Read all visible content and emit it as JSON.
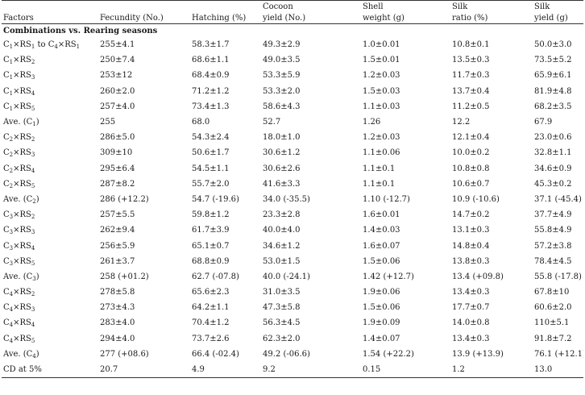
{
  "table": {
    "headers_top": [
      "",
      "",
      "",
      "Cocoon",
      "Shell",
      "Silk",
      "Silk"
    ],
    "headers_bottom": [
      "Factors",
      "Fecundity (No.)",
      "Hatching (%)",
      "yield (No.)",
      "weight (g)",
      "ratio (%)",
      "yield (g)"
    ],
    "section_title": "Combinations vs. Rearing seasons",
    "rows": [
      {
        "label": [
          [
            "C",
            "1"
          ],
          [
            "×RS",
            "1"
          ],
          [
            " to C",
            "4"
          ],
          [
            "×RS",
            "1"
          ]
        ],
        "values": [
          "255±4.1",
          "58.3±1.7",
          "49.3±2.9",
          "1.0±0.01",
          "10.8±0.1",
          "50.0±3.0"
        ]
      },
      {
        "label": [
          [
            "C",
            "1"
          ],
          [
            "×RS",
            "2"
          ]
        ],
        "values": [
          "250±7.4",
          "68.6±1.1",
          "49.0±3.5",
          "1.5±0.01",
          "13.5±0.3",
          "73.5±5.2"
        ]
      },
      {
        "label": [
          [
            "C",
            "1"
          ],
          [
            "×RS",
            "3"
          ]
        ],
        "values": [
          "253±12",
          "68.4±0.9",
          "53.3±5.9",
          "1.2±0.03",
          "11.7±0.3",
          "65.9±6.1"
        ]
      },
      {
        "label": [
          [
            "C",
            "1"
          ],
          [
            "×RS",
            "4"
          ]
        ],
        "values": [
          "260±2.0",
          "71.2±1.2",
          "53.3±2.0",
          "1.5±0.03",
          "13.7±0.4",
          "81.9±4.8"
        ]
      },
      {
        "label": [
          [
            "C",
            "1"
          ],
          [
            "×RS",
            "5"
          ]
        ],
        "values": [
          "257±4.0",
          "73.4±1.3",
          "58.6±4.3",
          "1.1±0.03",
          "11.2±0.5",
          "68.2±3.5"
        ]
      },
      {
        "label": [
          [
            "Ave. (C",
            "1"
          ],
          [
            ")",
            ""
          ]
        ],
        "values": [
          "255",
          "68.0",
          "52.7",
          "1.26",
          "12.2",
          "67.9"
        ]
      },
      {
        "label": [
          [
            "C",
            "2"
          ],
          [
            "×RS",
            "2"
          ]
        ],
        "values": [
          "286±5.0",
          "54.3±2.4",
          "18.0±1.0",
          "1.2±0.03",
          "12.1±0.4",
          "23.0±0.6"
        ]
      },
      {
        "label": [
          [
            "C",
            "2"
          ],
          [
            "×RS",
            "3"
          ]
        ],
        "values": [
          "309±10",
          "50.6±1.7",
          "30.6±1.2",
          "1.1±0.06",
          "10.0±0.2",
          "32.8±1.1"
        ]
      },
      {
        "label": [
          [
            "C",
            "2"
          ],
          [
            "×RS",
            "4"
          ]
        ],
        "values": [
          "295±6.4",
          "54.5±1.1",
          "30.6±2.6",
          "1.1±0.1",
          "10.8±0.8",
          "34.6±0.9"
        ]
      },
      {
        "label": [
          [
            "C",
            "2"
          ],
          [
            "×RS",
            "5"
          ]
        ],
        "values": [
          "287±8.2",
          "55.7±2.0",
          "41.6±3.3",
          "1.1±0.1",
          "10.6±0.7",
          "45.3±0.2"
        ]
      },
      {
        "label": [
          [
            "Ave. (C",
            "2"
          ],
          [
            ")",
            ""
          ]
        ],
        "values": [
          "286 (+12.2)",
          "54.7 (-19.6)",
          "34.0 (-35.5)",
          "1.10 (-12.7)",
          "10.9 (-10.6)",
          "37.1 (-45.4)"
        ]
      },
      {
        "label": [
          [
            "C",
            "3"
          ],
          [
            "×RS",
            "2"
          ]
        ],
        "values": [
          "257±5.5",
          "59.8±1.2",
          "23.3±2.8",
          "1.6±0.01",
          "14.7±0.2",
          "37.7±4.9"
        ]
      },
      {
        "label": [
          [
            "C",
            "3"
          ],
          [
            "×RS",
            "3"
          ]
        ],
        "values": [
          "262±9.4",
          "61.7±3.9",
          "40.0±4.0",
          "1.4±0.03",
          "13.1±0.3",
          "55.8±4.9"
        ]
      },
      {
        "label": [
          [
            "C",
            "3"
          ],
          [
            "×RS",
            "4"
          ]
        ],
        "values": [
          "256±5.9",
          "65.1±0.7",
          "34.6±1.2",
          "1.6±0.07",
          "14.8±0.4",
          "57.2±3.8"
        ]
      },
      {
        "label": [
          [
            "C",
            "3"
          ],
          [
            "×RS",
            "5"
          ]
        ],
        "values": [
          "261±3.7",
          "68.8±0.9",
          "53.0±1.5",
          "1.5±0.06",
          "13.8±0.3",
          "78.4±4.5"
        ]
      },
      {
        "label": [
          [
            "Ave. (C",
            "3"
          ],
          [
            ")",
            ""
          ]
        ],
        "values": [
          "258 (+01.2)",
          "62.7 (-07.8)",
          "40.0 (-24.1)",
          "1.42 (+12.7)",
          "13.4 (+09.8)",
          "55.8 (-17.8)"
        ]
      },
      {
        "label": [
          [
            "C",
            "4"
          ],
          [
            "×RS",
            "2"
          ]
        ],
        "values": [
          "278±5.8",
          "65.6±2.3",
          "31.0±3.5",
          "1.9±0.06",
          "13.4±0.3",
          "67.8±10"
        ]
      },
      {
        "label": [
          [
            "C",
            "4"
          ],
          [
            "×RS",
            "3"
          ]
        ],
        "values": [
          "273±4.3",
          "64.2±1.1",
          "47.3±5.8",
          "1.5±0.06",
          "17.7±0.7",
          "60.6±2.0"
        ]
      },
      {
        "label": [
          [
            "C",
            "4"
          ],
          [
            "×RS",
            "4"
          ]
        ],
        "values": [
          "283±4.0",
          "70.4±1.2",
          "56.3±4.5",
          "1.9±0.09",
          "14.0±0.8",
          "110±5.1"
        ]
      },
      {
        "label": [
          [
            "C",
            "4"
          ],
          [
            "×RS",
            "5"
          ]
        ],
        "values": [
          "294±4.0",
          "73.7±2.6",
          "62.3±2.0",
          "1.4±0.07",
          "13.4±0.3",
          "91.8±7.2"
        ]
      },
      {
        "label": [
          [
            "Ave. (C",
            "4"
          ],
          [
            ")",
            ""
          ]
        ],
        "values": [
          "277 (+08.6)",
          "66.4 (-02.4)",
          "49.2 (-06.6)",
          "1.54 (+22.2)",
          "13.9 (+13.9)",
          "76.1 (+12.1)"
        ]
      },
      {
        "label": [
          [
            "CD at 5%",
            ""
          ]
        ],
        "values": [
          "20.7",
          "4.9",
          "9.2",
          "0.15",
          "1.2",
          "13.0"
        ]
      }
    ]
  }
}
